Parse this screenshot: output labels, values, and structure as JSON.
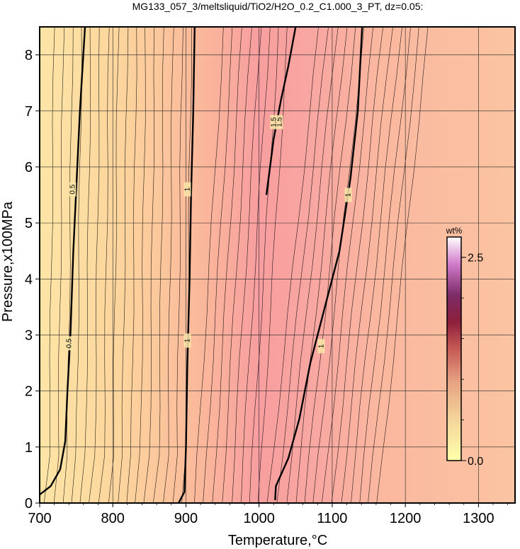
{
  "chart_data": {
    "type": "heatmap",
    "title": "MG133_057_3/meltsliquid/TiO2/H2O_0.2_C1.000_3_PT, dz=0.05:",
    "xlabel": "Temperature,°C",
    "ylabel": "Pressure,x100MPa",
    "xlim": [
      700,
      1350
    ],
    "ylim": [
      0,
      8.5
    ],
    "x_ticks": [
      "700",
      "800",
      "900",
      "1000",
      "1100",
      "1200",
      "1300"
    ],
    "y_ticks": [
      "0",
      "1",
      "2",
      "3",
      "4",
      "5",
      "6",
      "7",
      "8"
    ],
    "grid": true,
    "colorbar": {
      "label": "wt%",
      "ticks": [
        "0.0",
        "2.5"
      ],
      "range": [
        0.0,
        2.75
      ],
      "colors": [
        "#ffffaa",
        "#f2d29a",
        "#e6a07f",
        "#c25a55",
        "#8a1d3a",
        "#7a2a64",
        "#d07ac7",
        "#ffffff"
      ]
    },
    "field_colors": {
      "low": "#fde8a8",
      "mid": "#f8a4a4",
      "high_temp_plateau": "#fbc4a2"
    },
    "contour_interval": 0.05,
    "major_contours": [
      {
        "label": "0.5",
        "label_points": [
          [
            745,
            5.6
          ],
          [
            740,
            2.85
          ]
        ],
        "points": [
          [
            700,
            0.15
          ],
          [
            715,
            0.3
          ],
          [
            728,
            0.6
          ],
          [
            735,
            1.1
          ],
          [
            738,
            2.0
          ],
          [
            742,
            3.0
          ],
          [
            746,
            4.5
          ],
          [
            750,
            5.6
          ],
          [
            755,
            7.0
          ],
          [
            762,
            8.5
          ]
        ]
      },
      {
        "label": "1",
        "label_points": [
          [
            902,
            5.6
          ],
          [
            902,
            2.9
          ]
        ],
        "points": [
          [
            890,
            0.0
          ],
          [
            898,
            0.2
          ],
          [
            900,
            1.0
          ],
          [
            902,
            2.5
          ],
          [
            905,
            4.0
          ],
          [
            907,
            5.5
          ],
          [
            910,
            7.0
          ],
          [
            912,
            8.5
          ]
        ]
      },
      {
        "label": "1",
        "label_points": [
          [
            1085,
            2.8
          ],
          [
            1122,
            5.5
          ]
        ],
        "points": [
          [
            1022,
            0.05
          ],
          [
            1023,
            0.3
          ],
          [
            1040,
            0.8
          ],
          [
            1055,
            1.5
          ],
          [
            1070,
            2.5
          ],
          [
            1090,
            3.5
          ],
          [
            1110,
            4.5
          ],
          [
            1125,
            5.8
          ],
          [
            1135,
            7.0
          ],
          [
            1141,
            8.5
          ]
        ]
      },
      {
        "label": "1.5",
        "label_points": [
          [
            1028,
            6.8
          ],
          [
            1020,
            6.8
          ]
        ],
        "points": [
          [
            1010,
            5.5
          ],
          [
            1015,
            6.0
          ],
          [
            1020,
            6.5
          ],
          [
            1030,
            7.2
          ],
          [
            1040,
            7.8
          ],
          [
            1050,
            8.5
          ]
        ]
      }
    ]
  }
}
